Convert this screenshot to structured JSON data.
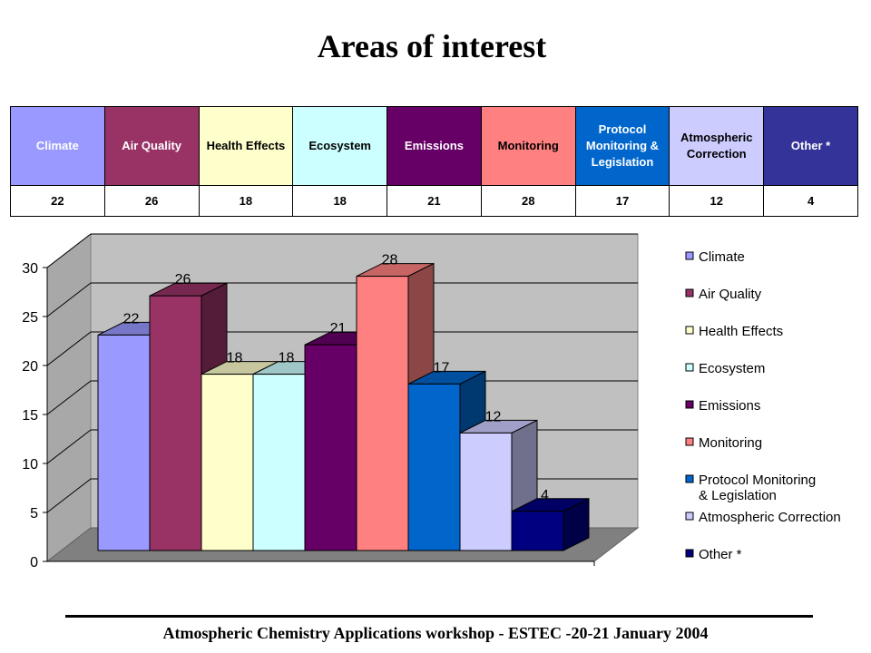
{
  "title": "Areas of interest",
  "footer": "Atmospheric Chemistry Applications workshop - ESTEC -20-21 January 2004",
  "table": {
    "headers": [
      "Climate",
      "Air Quality",
      "Health Effects",
      "Ecosystem",
      "Emissions",
      "Monitoring",
      "Protocol Monitoring & Legislation",
      "Atmospheric Correction",
      "Other *"
    ],
    "values": [
      "22",
      "26",
      "18",
      "18",
      "21",
      "28",
      "17",
      "12",
      "4"
    ],
    "header_colors": [
      "#9999ff",
      "#993366",
      "#ffffcc",
      "#ccffff",
      "#660066",
      "#ff8080",
      "#0066cc",
      "#ccccff",
      "#333399"
    ],
    "header_text_colors": [
      "#ffffff",
      "#ffffff",
      "#000000",
      "#000000",
      "#ffffff",
      "#000000",
      "#ffffff",
      "#000000",
      "#ffffff"
    ]
  },
  "chart_data": {
    "type": "bar",
    "categories": [
      "Climate",
      "Air Quality",
      "Health Effects",
      "Ecosystem",
      "Emissions",
      "Monitoring",
      "Protocol Monitoring & Legislation",
      "Atmospheric Correction",
      "Other *"
    ],
    "values": [
      22,
      26,
      18,
      18,
      21,
      28,
      17,
      12,
      4
    ],
    "colors": [
      "#9999ff",
      "#993366",
      "#ffffcc",
      "#ccffff",
      "#660066",
      "#ff8080",
      "#0066cc",
      "#ccccff",
      "#000080"
    ],
    "ylim": [
      0,
      30
    ],
    "yticks": [
      0,
      5,
      10,
      15,
      20,
      25,
      30
    ],
    "grid": true,
    "three_d": true,
    "legend": "right",
    "legend_labels": [
      [
        "Climate"
      ],
      [
        "Air Quality"
      ],
      [
        "Health Effects"
      ],
      [
        "Ecosystem"
      ],
      [
        "Emissions"
      ],
      [
        "Monitoring"
      ],
      [
        "Protocol Monitoring",
        "& Legislation"
      ],
      [
        "Atmospheric Correction"
      ],
      [
        "Other *"
      ]
    ]
  }
}
